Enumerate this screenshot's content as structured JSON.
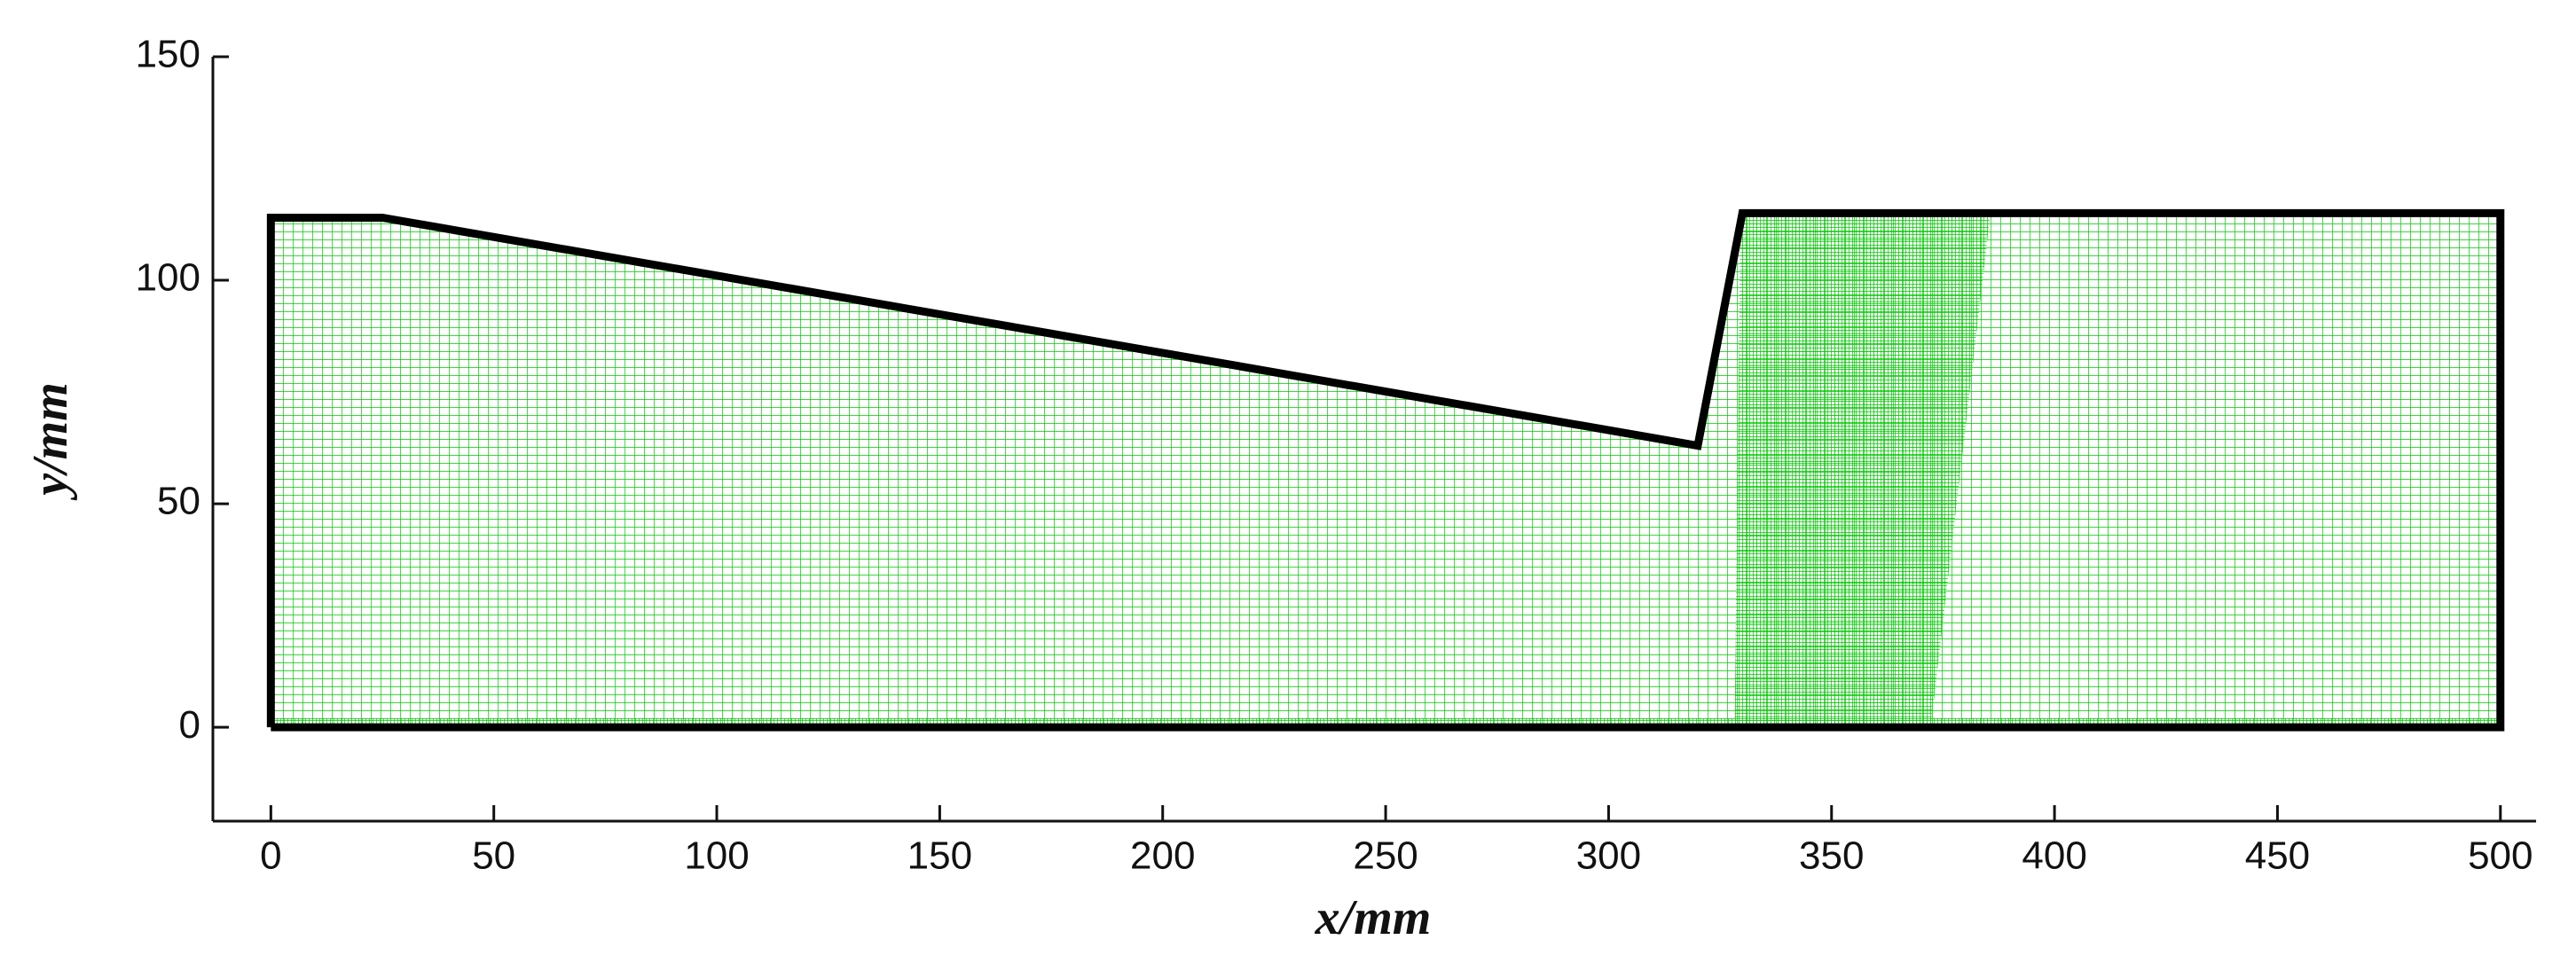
{
  "chart_data": {
    "type": "line",
    "x_label": "x/mm",
    "y_label": "y/mm",
    "x": [
      0,
      0,
      25,
      320,
      330,
      500,
      500,
      0
    ],
    "values": [
      0,
      114,
      114,
      63,
      115,
      115,
      0,
      0
    ],
    "color": "#000000",
    "mesh_color": "#00c800",
    "xlim": [
      -13,
      508
    ],
    "ylim": [
      -21,
      150
    ],
    "xticks": [
      0,
      50,
      100,
      150,
      200,
      250,
      300,
      350,
      400,
      450,
      500
    ],
    "yticks": [
      0,
      50,
      100,
      150
    ]
  }
}
